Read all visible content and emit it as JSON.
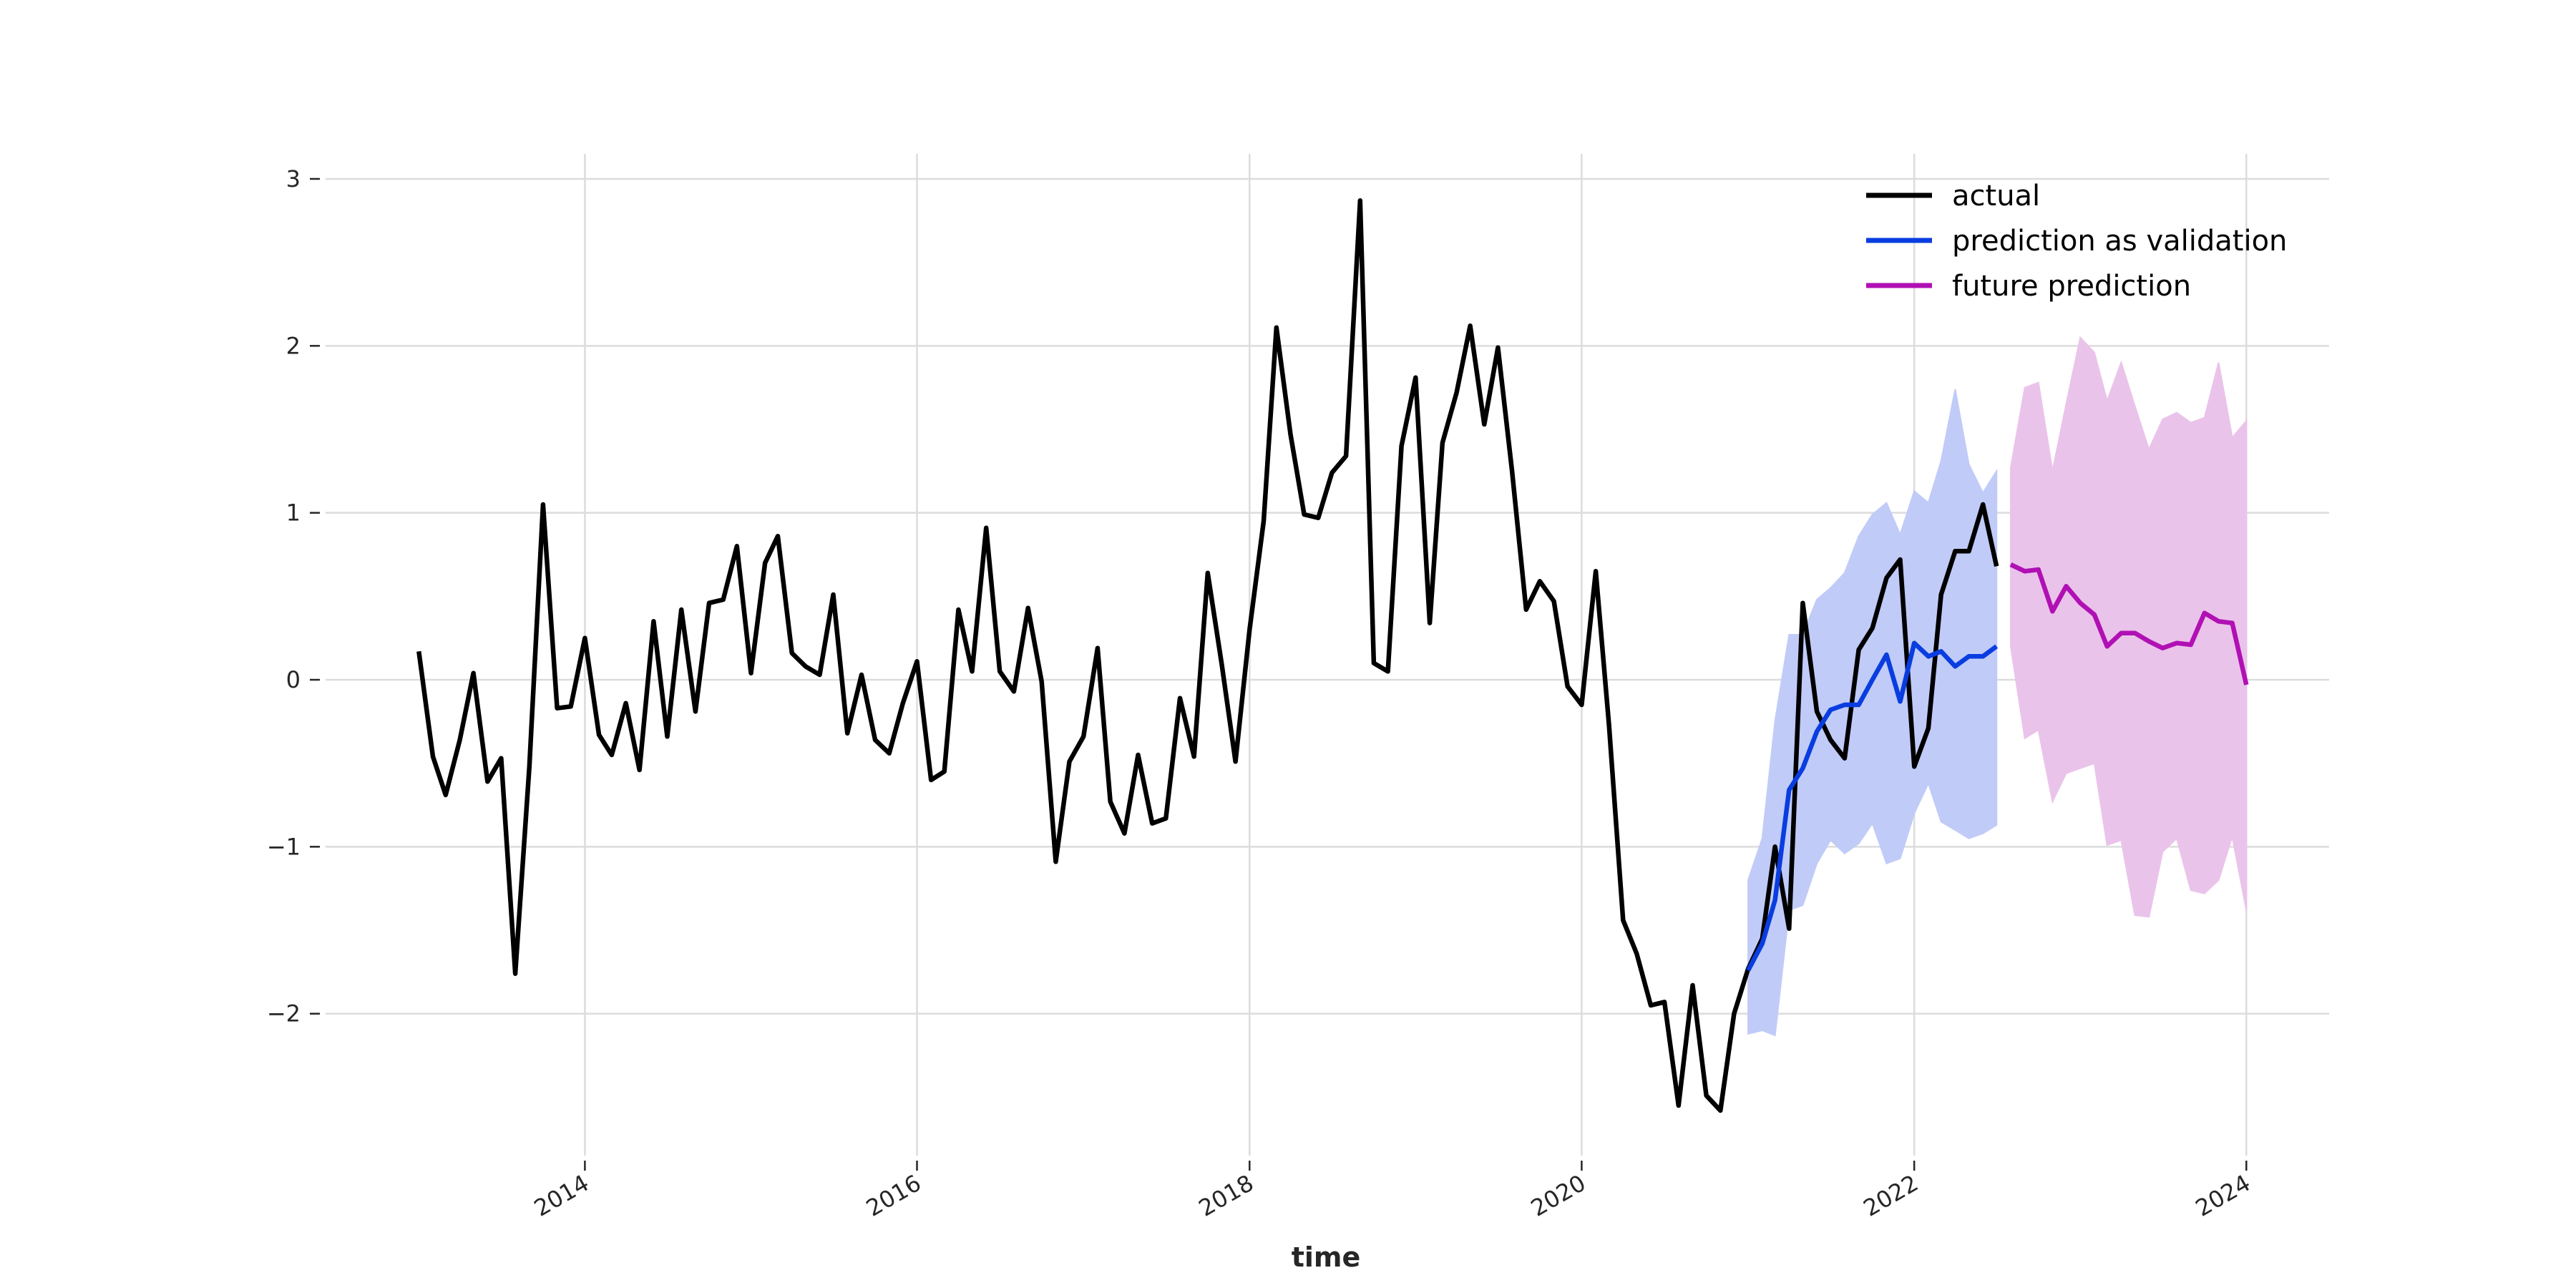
{
  "chart_data": {
    "type": "line",
    "xlabel": "time",
    "ylabel": "",
    "xlim": [
      "2012-06-10",
      "2024-07-01"
    ],
    "ylim": [
      -2.85,
      3.15
    ],
    "x_ticks": [
      {
        "date": "2014-01-01",
        "label": "2014"
      },
      {
        "date": "2016-01-01",
        "label": "2016"
      },
      {
        "date": "2018-01-01",
        "label": "2018"
      },
      {
        "date": "2020-01-01",
        "label": "2020"
      },
      {
        "date": "2022-01-01",
        "label": "2022"
      },
      {
        "date": "2024-01-01",
        "label": "2024"
      }
    ],
    "y_ticks": [
      {
        "value": -2,
        "label": "−2"
      },
      {
        "value": -1,
        "label": "−1"
      },
      {
        "value": 0,
        "label": "0"
      },
      {
        "value": 1,
        "label": "1"
      },
      {
        "value": 2,
        "label": "2"
      },
      {
        "value": 3,
        "label": "3"
      }
    ],
    "grid": true,
    "legend_position": "top-right",
    "series": [
      {
        "name": "actual",
        "color": "#000000",
        "start": "2013-01",
        "values": [
          0.17,
          -0.46,
          -0.69,
          -0.36,
          0.04,
          -0.61,
          -0.47,
          -1.76,
          -0.52,
          1.05,
          -0.17,
          -0.16,
          0.25,
          -0.33,
          -0.45,
          -0.14,
          -0.54,
          0.35,
          -0.34,
          0.42,
          -0.19,
          0.46,
          0.48,
          0.8,
          0.04,
          0.7,
          0.86,
          0.16,
          0.08,
          0.03,
          0.51,
          -0.32,
          0.03,
          -0.36,
          -0.44,
          -0.14,
          0.11,
          -0.6,
          -0.55,
          0.42,
          0.05,
          0.91,
          0.05,
          -0.07,
          0.43,
          -0.01,
          -1.09,
          -0.49,
          -0.34,
          0.19,
          -0.73,
          -0.92,
          -0.45,
          -0.86,
          -0.83,
          -0.11,
          -0.46,
          0.64,
          0.09,
          -0.49,
          0.3,
          0.95,
          2.11,
          1.47,
          0.99,
          0.97,
          1.24,
          1.34,
          2.87,
          0.1,
          0.05,
          1.4,
          1.81,
          0.34,
          1.42,
          1.72,
          2.12,
          1.53,
          1.99,
          1.25,
          0.42,
          0.59,
          0.47,
          -0.04,
          -0.15,
          0.65,
          -0.27,
          -1.44,
          -1.64,
          -1.95,
          -1.93,
          -2.55,
          -1.83,
          -2.49,
          -2.58,
          -2.0,
          -1.73,
          -1.55,
          -1.0,
          -1.49,
          0.46,
          -0.19,
          -0.36,
          -0.47,
          0.18,
          0.31,
          0.61,
          0.72,
          -0.52,
          -0.29,
          0.51,
          0.77,
          0.77,
          1.05,
          0.68
        ]
      },
      {
        "name": "prediction as validation",
        "color": "#0a3de0",
        "start": "2021-01",
        "values": [
          -1.74,
          -1.58,
          -1.32,
          -0.66,
          -0.53,
          -0.31,
          -0.18,
          -0.15,
          -0.15,
          0.0,
          0.15,
          -0.13,
          0.22,
          0.14,
          0.17,
          0.08,
          0.14,
          0.14,
          0.2
        ],
        "band": {
          "color": "#c0cbf8",
          "lower": [
            -2.12,
            -2.1,
            -2.13,
            -1.38,
            -1.35,
            -1.1,
            -0.96,
            -1.04,
            -0.98,
            -0.86,
            -1.1,
            -1.07,
            -0.8,
            -0.62,
            -0.85,
            -0.9,
            -0.95,
            -0.92,
            -0.87
          ],
          "upper": [
            -1.2,
            -0.95,
            -0.25,
            0.27,
            0.27,
            0.48,
            0.55,
            0.64,
            0.86,
            0.99,
            1.06,
            0.87,
            1.13,
            1.06,
            1.31,
            1.74,
            1.29,
            1.12,
            1.25
          ]
        }
      },
      {
        "name": "future prediction",
        "color": "#b010b4",
        "start": "2022-08",
        "values": [
          0.69,
          0.65,
          0.66,
          0.41,
          0.56,
          0.46,
          0.39,
          0.2,
          0.28,
          0.28,
          0.23,
          0.19,
          0.22,
          0.21,
          0.4,
          0.35,
          0.34,
          -0.03
        ],
        "band": {
          "color": "#eac3ea",
          "lower": [
            0.2,
            -0.35,
            -0.3,
            -0.73,
            -0.56,
            -0.53,
            -0.5,
            -0.99,
            -0.96,
            -1.41,
            -1.42,
            -1.03,
            -0.95,
            -1.26,
            -1.28,
            -1.2,
            -0.94,
            -1.38
          ],
          "upper": [
            1.27,
            1.75,
            1.78,
            1.25,
            1.65,
            2.05,
            1.96,
            1.67,
            1.9,
            1.64,
            1.38,
            1.56,
            1.6,
            1.54,
            1.57,
            1.9,
            1.45,
            1.55
          ]
        }
      }
    ]
  }
}
